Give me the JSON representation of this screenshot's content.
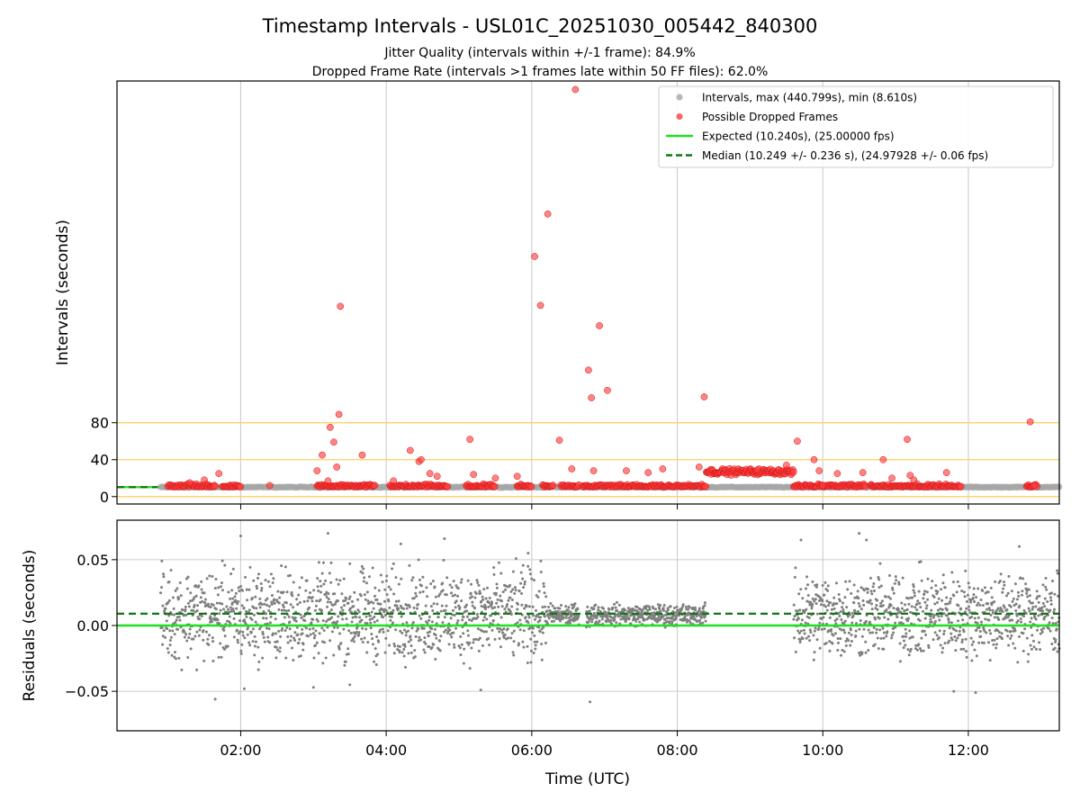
{
  "chart_data": [
    {
      "type": "scatter",
      "title": "Timestamp Intervals - USL01C_20251030_005442_840300",
      "subtitle_lines": [
        "Jitter Quality (intervals within +/-1 frame): 84.9%",
        "Dropped Frame Rate (intervals >1 frames late within 50 FF files): 62.0%"
      ],
      "ylabel": "Intervals (seconds)",
      "xlim_hours": [
        0.3,
        13.25
      ],
      "ylim": [
        -8,
        450
      ],
      "y_ticks": [
        {
          "value": 0,
          "label": "0"
        },
        {
          "value": 40,
          "label": "40"
        },
        {
          "value": 80,
          "label": "80"
        }
      ],
      "orange_lines": [
        0,
        40,
        80
      ],
      "expected_value": 10.24,
      "median_value": 10.249,
      "legend_position": "top-right",
      "legend": [
        {
          "key": "intervals",
          "label": "Intervals, max (440.799s), min (8.610s)",
          "color": "#a6a6a6",
          "marker": "dot"
        },
        {
          "key": "dropped",
          "label": "Possible Dropped Frames",
          "color": "#ff4040",
          "marker": "dot"
        },
        {
          "key": "expected",
          "label": "Expected (10.240s), (25.00000 fps)",
          "color": "#22dd22",
          "marker": "line"
        },
        {
          "key": "median",
          "label": "Median (10.249 +/- 0.236 s), (24.97928 +/- 0.06 fps)",
          "color": "#117711",
          "marker": "dash"
        }
      ],
      "dropped_frames": {
        "x_hours": [
          6.6,
          6.22,
          6.04,
          6.12,
          3.37,
          6.93,
          6.78,
          6.82,
          7.04,
          8.37,
          3.35,
          3.23,
          3.28,
          3.12,
          3.32,
          4.33,
          4.45,
          4.48,
          5.15,
          3.67,
          6.38,
          9.65,
          9.88,
          11.16,
          12.85,
          10.83,
          3.05,
          3.2,
          4.6,
          6.55,
          6.85,
          7.3,
          7.8,
          8.3,
          9.1,
          9.5,
          10.2,
          10.55,
          10.95,
          11.2,
          11.7,
          1.7,
          4.1,
          5.5,
          5.8,
          7.6,
          4.7,
          2.4,
          1.3,
          12.9,
          1.5,
          5.2,
          9.95,
          10.0,
          11.25
        ],
        "y": [
          440.8,
          306,
          260,
          207,
          206,
          185,
          137,
          107,
          115,
          108,
          89,
          75,
          59,
          45,
          32,
          50,
          38,
          40,
          62,
          45,
          61,
          60,
          40,
          62,
          81,
          40,
          28,
          17,
          25,
          30,
          28,
          28,
          30,
          32,
          29,
          34,
          25,
          26,
          20,
          23,
          26,
          25,
          17,
          20,
          22,
          26,
          22,
          12,
          15,
          12,
          18,
          24,
          28,
          12,
          18
        ]
      },
      "dropped_clusters": [
        [
          1.0,
          1.65
        ],
        [
          1.75,
          2.0
        ],
        [
          3.05,
          3.85
        ],
        [
          4.05,
          4.85
        ],
        [
          5.1,
          5.5
        ],
        [
          5.8,
          6.0
        ],
        [
          6.15,
          6.3
        ],
        [
          6.4,
          6.65
        ],
        [
          6.7,
          8.4
        ],
        [
          9.6,
          10.6
        ],
        [
          10.65,
          11.9
        ],
        [
          12.8,
          12.95
        ]
      ],
      "plateau": {
        "x_range": [
          8.4,
          9.6
        ],
        "y": 27,
        "jitter": 3
      }
    },
    {
      "type": "scatter",
      "title": "",
      "xlabel": "Time (UTC)",
      "ylabel": "Residuals (seconds)",
      "xlim_hours": [
        0.3,
        13.25
      ],
      "ylim": [
        -0.08,
        0.08
      ],
      "y_ticks": [
        {
          "value": 0.05,
          "label": "0.05"
        },
        {
          "value": 0.0,
          "label": "0.00"
        },
        {
          "value": -0.05,
          "label": "−0.05"
        }
      ],
      "x_ticks": [
        {
          "value": 2,
          "label": "02:00"
        },
        {
          "value": 4,
          "label": "04:00"
        },
        {
          "value": 6,
          "label": "06:00"
        },
        {
          "value": 8,
          "label": "08:00"
        },
        {
          "value": 10,
          "label": "10:00"
        },
        {
          "value": 12,
          "label": "12:00"
        }
      ],
      "expected_value": 0.0,
      "median_value": 0.009,
      "point_color": "#7f7f7f",
      "segments": [
        {
          "x_range": [
            0.9,
            6.2
          ],
          "center": 0.008,
          "spread": 0.03
        },
        {
          "x_range": [
            6.2,
            6.65
          ],
          "center": 0.008,
          "spread": 0.007
        },
        {
          "x_range": [
            6.75,
            8.4
          ],
          "center": 0.008,
          "spread": 0.007
        },
        {
          "x_range": [
            9.6,
            13.25
          ],
          "center": 0.008,
          "spread": 0.028
        }
      ],
      "outliers": {
        "x_hours": [
          1.65,
          2.05,
          3.0,
          3.5,
          5.3,
          6.8,
          9.7,
          10.5,
          11.8,
          12.1,
          2.0,
          3.2,
          4.2,
          4.8,
          5.95,
          10.6,
          12.7
        ],
        "y": [
          -0.056,
          -0.048,
          -0.047,
          -0.045,
          -0.049,
          -0.058,
          0.065,
          0.07,
          -0.05,
          -0.051,
          0.068,
          0.07,
          0.062,
          0.066,
          0.055,
          0.065,
          0.06
        ]
      }
    }
  ]
}
